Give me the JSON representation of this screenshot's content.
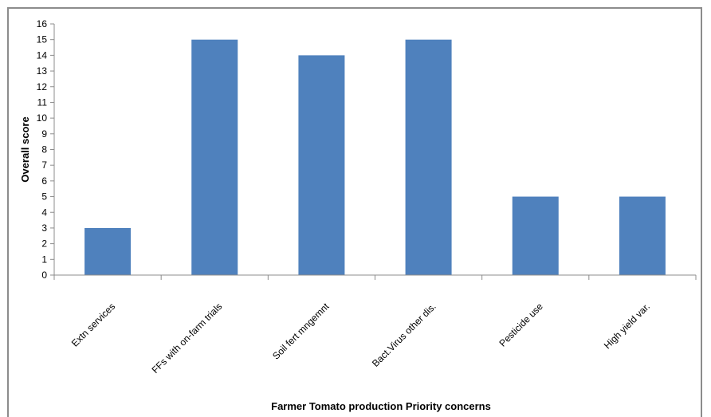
{
  "chart_data": {
    "type": "bar",
    "title": "",
    "xlabel": "Farmer Tomato production Priority concerns",
    "ylabel": "Overall score",
    "categories": [
      "Extn services",
      "FFs with on-farm trials",
      "Soil fert mngemnt",
      "Bact.Virus other dis.",
      "Pesticide use",
      "High yield var."
    ],
    "values": [
      3,
      15,
      14,
      15,
      5,
      5
    ],
    "ylim": [
      0,
      16
    ],
    "yticks": [
      "0",
      "1",
      "2",
      "3",
      "4",
      "5",
      "6",
      "7",
      "8",
      "9",
      "10",
      "11",
      "12",
      "13",
      "14",
      "15",
      "16"
    ],
    "bar_color": "#4f81bd",
    "grid": false,
    "legend": "none"
  }
}
